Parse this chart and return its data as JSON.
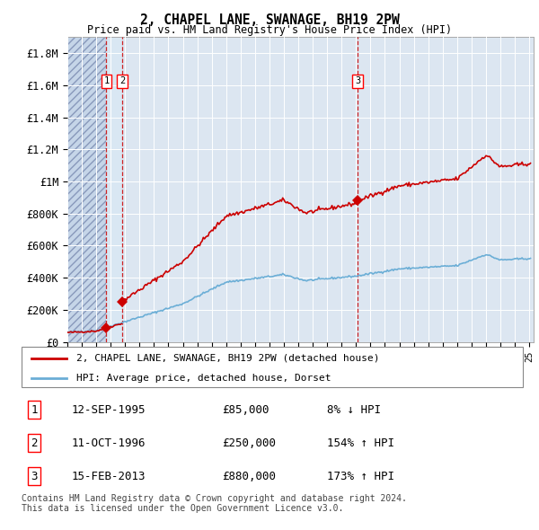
{
  "title": "2, CHAPEL LANE, SWANAGE, BH19 2PW",
  "subtitle": "Price paid vs. HM Land Registry's House Price Index (HPI)",
  "ylim": [
    0,
    1900000
  ],
  "yticks": [
    0,
    200000,
    400000,
    600000,
    800000,
    1000000,
    1200000,
    1400000,
    1600000,
    1800000
  ],
  "ytick_labels": [
    "£0",
    "£200K",
    "£400K",
    "£600K",
    "£800K",
    "£1M",
    "£1.2M",
    "£1.4M",
    "£1.6M",
    "£1.8M"
  ],
  "background_color": "#ffffff",
  "plot_bg_color": "#dce6f1",
  "grid_color": "#ffffff",
  "sale_labels": [
    "1",
    "2",
    "3"
  ],
  "legend_line1": "2, CHAPEL LANE, SWANAGE, BH19 2PW (detached house)",
  "legend_line2": "HPI: Average price, detached house, Dorset",
  "table_rows": [
    [
      "1",
      "12-SEP-1995",
      "£85,000",
      "8% ↓ HPI"
    ],
    [
      "2",
      "11-OCT-1996",
      "£250,000",
      "154% ↑ HPI"
    ],
    [
      "3",
      "15-FEB-2013",
      "£880,000",
      "173% ↑ HPI"
    ]
  ],
  "footer": "Contains HM Land Registry data © Crown copyright and database right 2024.\nThis data is licensed under the Open Government Licence v3.0.",
  "hpi_line_color": "#6baed6",
  "price_line_color": "#cc0000",
  "marker_color": "#cc0000",
  "dashed_line_color": "#cc0000",
  "sale_year_floats": [
    1995.7,
    1996.8,
    2013.1
  ],
  "sale_prices": [
    85000,
    250000,
    880000
  ],
  "xlim": [
    1993,
    2025.3
  ]
}
